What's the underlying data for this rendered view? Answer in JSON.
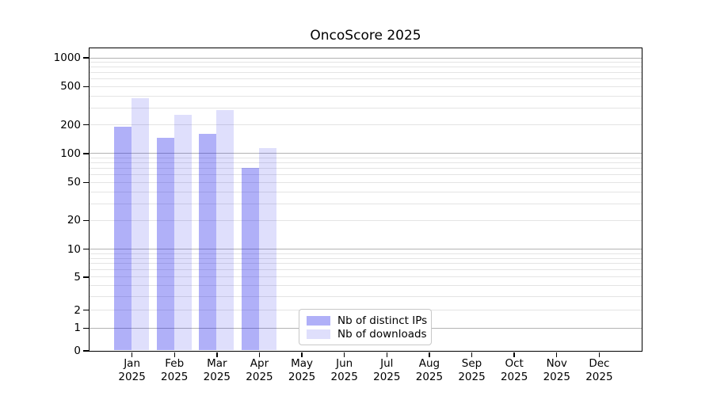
{
  "chart_data": {
    "type": "bar",
    "title": "OncoScore 2025",
    "categories": [
      "Jan 2025",
      "Feb 2025",
      "Mar 2025",
      "Apr 2025",
      "May 2025",
      "Jun 2025",
      "Jul 2025",
      "Aug 2025",
      "Sep 2025",
      "Oct 2025",
      "Nov 2025",
      "Dec 2025"
    ],
    "series": [
      {
        "name": "Nb of distinct IPs",
        "color": "rgba(30,30,235,0.35)",
        "values": [
          188,
          145,
          158,
          70,
          null,
          null,
          null,
          null,
          null,
          null,
          null,
          null
        ]
      },
      {
        "name": "Nb of downloads",
        "color": "rgba(30,30,235,0.14)",
        "values": [
          378,
          250,
          282,
          113,
          null,
          null,
          null,
          null,
          null,
          null,
          null,
          null
        ]
      }
    ],
    "xlabel": "",
    "ylabel": "",
    "yscale": "log-like (symlog/asinh) with 0 at baseline",
    "yticks": [
      0,
      1,
      2,
      5,
      10,
      20,
      50,
      100,
      200,
      500,
      1000
    ],
    "ylim": [
      0,
      1200
    ],
    "grid": "horizontal major and minor gridlines",
    "legend_position": "inside axes, lower center-left",
    "colors": {
      "bar_ips_rendered": "#b0b0f8",
      "bar_downloads_rendered": "#dfdffc",
      "grid_major": "#b3b3b3",
      "grid_minor": "#e4e4e4",
      "axis": "#000000"
    }
  }
}
